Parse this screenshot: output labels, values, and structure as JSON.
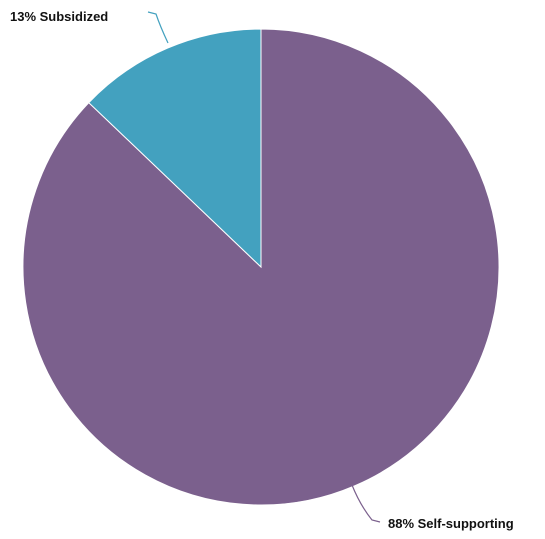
{
  "chart_data": {
    "type": "pie",
    "slices": [
      {
        "name": "Self-supporting",
        "value": 88,
        "label": "88% Self-supporting",
        "color": "#7b608d"
      },
      {
        "name": "Subsidized",
        "value": 13,
        "label": "13% Subsidized",
        "color": "#43a1bf"
      }
    ],
    "title": "",
    "legend": "none",
    "start_angle": "12 o'clock",
    "direction": "clockwise"
  }
}
